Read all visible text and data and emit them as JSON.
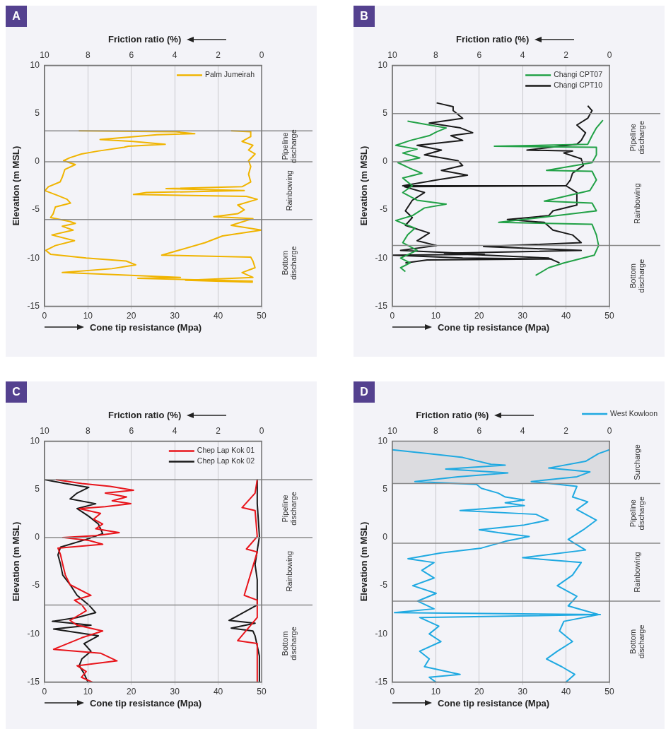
{
  "chart_data": [
    {
      "type": "line",
      "title": "A",
      "xlabel": "Cone tip resistance (Mpa)",
      "x2label": "Friction ratio (%)",
      "ylabel": "Elevation (m MSL)",
      "xlim": [
        0,
        50
      ],
      "xticks": [
        0,
        10,
        20,
        30,
        40,
        50
      ],
      "x2lim": [
        10,
        0
      ],
      "x2ticks": [
        10,
        8,
        6,
        4,
        2,
        0
      ],
      "ylim": [
        -15,
        10
      ],
      "yticks": [
        -15,
        -10,
        -5,
        0,
        5,
        10
      ],
      "grid": "x",
      "legend": "top right",
      "ref_lines": [
        {
          "axis": "y",
          "value": 3.2
        },
        {
          "axis": "y",
          "value": 0
        },
        {
          "axis": "y",
          "value": -6
        }
      ],
      "annotations": [
        "Pipeline discharge",
        "Rainbowing",
        "Bottom discharge"
      ],
      "series": [
        {
          "name": "Palm Jumeirah",
          "color": "#f0b400",
          "x": [
            7.9,
            30.2,
            34.6,
            25.9,
            12.8,
            20.4,
            27.8,
            19.3,
            18.3,
            12.3,
            8.5,
            5.8,
            4.4,
            7.1,
            4.7,
            4.1,
            3.6,
            0.9,
            0.1,
            3.0,
            5.2,
            6.0,
            2.5,
            2.0,
            1.4,
            5.8,
            7.1,
            4.1,
            6.6,
            1.7,
            6.9,
            2.5,
            0.3,
            1.4,
            9.6,
            18.8,
            21.0,
            15.5,
            4.1,
            15.0,
            31.3,
            21.5,
            48.0
          ],
          "values": [
            3.2,
            3.1,
            2.9,
            2.8,
            2.3,
            2.1,
            1.8,
            1.6,
            1.5,
            1.1,
            0.8,
            0.4,
            0.1,
            -0.3,
            -0.8,
            -1.6,
            -2.1,
            -2.6,
            -3.0,
            -3.5,
            -3.9,
            -4.3,
            -4.7,
            -5.4,
            -5.8,
            -6.2,
            -6.4,
            -6.7,
            -7.1,
            -7.6,
            -8.2,
            -8.7,
            -9.2,
            -9.6,
            -10.0,
            -10.3,
            -10.7,
            -11.1,
            -11.5,
            -11.7,
            -12.0,
            -12.1,
            -12.4
          ]
        },
        {
          "color": "#f0b400",
          "axis": "x2",
          "x": [
            1.4,
            0.5,
            0.5,
            0.9,
            0.4,
            0.6,
            0.3,
            0.6,
            0.5,
            0.6,
            0.5,
            0.9,
            4.4,
            0.8,
            5.3,
            5.9,
            0.7,
            0.2,
            1.1,
            0.8,
            1.1,
            2.2,
            0.4,
            1.4,
            0.0,
            1.2,
            1.8,
            2.6,
            4.6,
            0.5,
            0.4,
            0.3,
            0.9,
            0.4,
            3.5,
            0.4
          ],
          "values": [
            3.2,
            3.1,
            2.6,
            2.1,
            1.7,
            1.2,
            0.8,
            0.1,
            -0.5,
            -1.3,
            -2.1,
            -2.6,
            -2.8,
            -3.0,
            -3.2,
            -3.4,
            -3.6,
            -3.9,
            -4.5,
            -5.0,
            -5.4,
            -5.7,
            -5.9,
            -6.6,
            -7.1,
            -7.5,
            -7.7,
            -8.4,
            -9.7,
            -9.9,
            -10.3,
            -11.0,
            -11.5,
            -12.0,
            -12.3,
            -12.5
          ]
        }
      ]
    },
    {
      "type": "line",
      "title": "B",
      "xlabel": "Cone tip resistance (Mpa)",
      "x2label": "Friction ratio (%)",
      "ylabel": "Elevation (m MSL)",
      "xlim": [
        0,
        50
      ],
      "xticks": [
        0,
        10,
        20,
        30,
        40,
        50
      ],
      "x2lim": [
        10,
        0
      ],
      "x2ticks": [
        10,
        8,
        6,
        4,
        2,
        0
      ],
      "ylim": [
        -15,
        10
      ],
      "yticks": [
        -15,
        -10,
        -5,
        0,
        5,
        10
      ],
      "grid": "x",
      "legend": "top right",
      "ref_lines": [
        {
          "axis": "y",
          "value": 5
        },
        {
          "axis": "y",
          "value": 0
        },
        {
          "axis": "y",
          "value": -8.7
        }
      ],
      "annotations": [
        "Pipeline discharge",
        "Rainbowing",
        "Bottom discharge"
      ],
      "series": [
        {
          "name": "Changi CPT07",
          "color": "#21a146",
          "x": [
            3.5,
            7.4,
            12.4,
            10.2,
            8.5,
            4.1,
            0.8,
            5.7,
            2.4,
            6.3,
            1.3,
            4.1,
            6.8,
            2.4,
            4.6,
            2.4,
            5.7,
            12.4,
            7.4,
            4.6,
            0.8,
            5.2,
            3.5,
            2.4,
            5.7,
            1.9,
            4.1,
            1.9,
            3.0
          ],
          "values": [
            4.2,
            3.9,
            3.5,
            3.1,
            2.7,
            2.2,
            1.7,
            1.3,
            0.9,
            0.4,
            -0.1,
            -0.7,
            -1.2,
            -1.7,
            -2.5,
            -3.2,
            -4.0,
            -4.4,
            -4.8,
            -5.6,
            -6.1,
            -6.9,
            -7.6,
            -8.4,
            -9.2,
            -10.0,
            -10.5,
            -11.0,
            -11.4
          ]
        },
        {
          "name": "Changi CPT10",
          "color": "#1a1a1a",
          "x": [
            10.2,
            14.0,
            14.0,
            16.2,
            8.5,
            15.7,
            18.5,
            13.5,
            16.2,
            5.7,
            11.3,
            7.4,
            15.1,
            16.2,
            11.3,
            17.3,
            10.2,
            2.4,
            40.0,
            2.8,
            7.4,
            4.6,
            3.0,
            4.6,
            3.0,
            8.5,
            5.7,
            10.2,
            1.9,
            21.2,
            0.2,
            16.2,
            36.7,
            8.0,
            3.0
          ],
          "values": [
            6.1,
            5.7,
            5.3,
            4.5,
            4.0,
            3.5,
            3.0,
            2.7,
            2.2,
            1.7,
            1.2,
            0.7,
            0.1,
            -0.4,
            -0.9,
            -1.4,
            -1.9,
            -2.5,
            -2.5,
            -2.6,
            -3.2,
            -4.0,
            -5.1,
            -5.8,
            -6.6,
            -7.4,
            -8.2,
            -8.7,
            -9.2,
            -9.6,
            -9.7,
            -10.0,
            -10.1,
            -10.2,
            -10.5
          ]
        },
        {
          "color": "#21a146",
          "axis": "x2",
          "x": [
            0.3,
            0.6,
            0.8,
            1.0,
            5.3,
            0.6,
            0.6,
            0.8,
            2.9,
            0.8,
            0.6,
            0.9,
            3.0,
            0.8,
            0.6,
            5.1,
            0.8,
            0.6,
            0.5,
            0.7,
            2.1,
            2.8,
            3.4
          ],
          "values": [
            4.3,
            3.5,
            2.7,
            1.8,
            1.6,
            1.5,
            0.7,
            -0.1,
            -0.9,
            -1.0,
            -1.9,
            -3.0,
            -4.1,
            -4.3,
            -5.1,
            -6.3,
            -6.5,
            -7.6,
            -8.7,
            -9.7,
            -10.5,
            -11.0,
            -11.8
          ]
        },
        {
          "color": "#1a1a1a",
          "axis": "x2",
          "x": [
            1.0,
            0.8,
            1.0,
            1.5,
            1.1,
            1.3,
            1.5,
            3.8,
            1.7,
            2.1,
            1.3,
            1.2,
            1.7,
            1.8,
            2.0,
            1.5,
            1.5,
            2.6,
            2.8,
            4.7,
            3.0,
            2.6,
            1.7,
            1.3,
            5.8,
            1.3,
            7.6,
            2.8,
            2.6,
            2.3
          ],
          "values": [
            5.8,
            5.3,
            4.5,
            3.8,
            3.0,
            2.2,
            1.8,
            1.2,
            1.1,
            0.9,
            0.3,
            -0.4,
            -1.2,
            -1.9,
            -2.5,
            -3.2,
            -4.5,
            -5.1,
            -5.6,
            -6.0,
            -6.3,
            -7.1,
            -7.6,
            -8.4,
            -8.8,
            -9.2,
            -9.5,
            -10.0,
            -10.2,
            -10.5
          ]
        }
      ]
    },
    {
      "type": "line",
      "title": "C",
      "xlabel": "Cone tip resistance (Mpa)",
      "x2label": "Friction ratio (%)",
      "ylabel": "Elevation (m MSL)",
      "xlim": [
        0,
        50
      ],
      "xticks": [
        0,
        10,
        20,
        30,
        40,
        50
      ],
      "x2lim": [
        10,
        0
      ],
      "x2ticks": [
        10,
        8,
        6,
        4,
        2,
        0
      ],
      "ylim": [
        -15,
        10
      ],
      "yticks": [
        -15,
        -10,
        -5,
        0,
        5,
        10
      ],
      "grid": "x",
      "legend": "top right",
      "ref_lines": [
        {
          "axis": "y",
          "value": 6
        },
        {
          "axis": "y",
          "value": 0
        },
        {
          "axis": "y",
          "value": -7
        }
      ],
      "annotations": [
        "Pipeline discharge",
        "Rainbowing",
        "Bottom discharge"
      ],
      "series": [
        {
          "name": "Chep Lap Kok 01",
          "color": "#e8141b",
          "x": [
            2.6,
            8.6,
            15.1,
            20.5,
            14.0,
            18.9,
            15.6,
            19.9,
            14.0,
            8.0,
            12.9,
            11.3,
            13.4,
            11.8,
            17.2,
            11.8,
            4.2,
            10.2,
            13.4,
            3.1,
            3.7,
            4.2,
            4.8,
            5.9,
            10.7,
            6.9,
            8.6,
            9.6,
            5.9,
            7.5,
            13.4,
            8.6,
            2.1,
            12.9,
            16.7,
            7.5,
            9.6,
            8.5,
            11.0
          ],
          "values": [
            6.0,
            5.6,
            5.3,
            4.9,
            4.6,
            4.2,
            3.8,
            3.5,
            3.2,
            3.0,
            2.5,
            1.9,
            1.4,
            0.9,
            0.5,
            0.2,
            0.0,
            -0.3,
            -0.7,
            -1.1,
            -1.8,
            -2.8,
            -3.9,
            -4.9,
            -6.0,
            -6.5,
            -7.0,
            -7.6,
            -8.6,
            -9.1,
            -9.7,
            -10.4,
            -11.6,
            -12.0,
            -12.8,
            -13.3,
            -13.9,
            -14.5,
            -15.0
          ]
        },
        {
          "name": "Chep Lap Kok 02",
          "color": "#1a1a1a",
          "x": [
            0.0,
            4.8,
            10.2,
            7.5,
            5.9,
            11.8,
            7.5,
            10.2,
            12.4,
            13.4,
            9.6,
            3.7,
            3.1,
            3.7,
            4.2,
            5.9,
            7.5,
            10.2,
            11.8,
            7.5,
            1.8,
            10.7,
            2.1,
            12.4,
            9.1,
            10.7,
            8.6,
            8.0,
            9.1,
            10.0
          ],
          "values": [
            6.0,
            5.6,
            5.2,
            4.6,
            4.0,
            3.5,
            3.0,
            2.2,
            1.4,
            0.4,
            -0.2,
            -1.0,
            -1.8,
            -2.8,
            -3.9,
            -4.9,
            -6.0,
            -7.0,
            -7.8,
            -8.3,
            -8.7,
            -9.1,
            -9.5,
            -10.2,
            -11.0,
            -11.8,
            -12.6,
            -13.3,
            -14.1,
            -15.0
          ]
        },
        {
          "color": "#e8141b",
          "axis": "x2",
          "x": [
            0.2,
            0.3,
            0.9,
            0.3,
            0.2,
            0.7,
            0.2,
            0.8,
            0.2,
            0.2,
            1.1,
            0.2,
            0.2
          ],
          "values": [
            6.0,
            4.6,
            3.1,
            2.8,
            0.1,
            -1.2,
            -1.5,
            -6.0,
            -6.5,
            -8.3,
            -10.7,
            -11.0,
            -15.0
          ]
        },
        {
          "color": "#1a1a1a",
          "axis": "x2",
          "x": [
            0.2,
            0.2,
            0.1,
            0.3,
            0.2,
            0.2,
            1.5,
            0.3,
            1.4,
            0.4,
            0.3,
            0.1,
            0.1
          ],
          "values": [
            6.0,
            3.5,
            0.1,
            -2.8,
            -4.4,
            -7.0,
            -8.6,
            -8.9,
            -9.4,
            -9.7,
            -10.2,
            -12.3,
            -15.0
          ]
        }
      ]
    },
    {
      "type": "line",
      "title": "D",
      "xlabel": "Cone tip resistance (Mpa)",
      "x2label": "Friction ratio (%)",
      "ylabel": "Elevation (m MSL)",
      "xlim": [
        0,
        50
      ],
      "xticks": [
        0,
        10,
        20,
        30,
        40,
        50
      ],
      "x2lim": [
        10,
        0
      ],
      "x2ticks": [
        10,
        8,
        6,
        4,
        2,
        0
      ],
      "ylim": [
        -15,
        10
      ],
      "yticks": [
        -15,
        -10,
        -5,
        0,
        5,
        10
      ],
      "grid": "x",
      "legend": "top",
      "ref_lines": [
        {
          "axis": "y",
          "value": 5.6
        },
        {
          "axis": "y",
          "value": -0.6
        },
        {
          "axis": "y",
          "value": -6.6
        }
      ],
      "bands": [
        {
          "axis": "y",
          "from": 5.6,
          "to": 10,
          "color": "#dcdce0"
        }
      ],
      "annotations": [
        "Surcharge",
        "Pipeline discharge",
        "Rainbowing",
        "Bottom discharge"
      ],
      "series": [
        {
          "name": "West Kowloon",
          "color": "#1fa9e1",
          "x": [
            0.0,
            8.5,
            16.2,
            22.7,
            26.0,
            12.3,
            26.6,
            15.1,
            5.2,
            19.4,
            20.5,
            24.4,
            26.0,
            30.4,
            26.0,
            30.4,
            15.6,
            33.1,
            35.9,
            30.4,
            20.0,
            24.4,
            31.5,
            26.0,
            20.5,
            11.2,
            3.6,
            9.6,
            6.8,
            9.6,
            4.7,
            10.1,
            5.8,
            9.6,
            0.5,
            47.9,
            6.3,
            10.7,
            8.5,
            11.2,
            6.3,
            8.5,
            7.4,
            15.6,
            8.5,
            10.0
          ],
          "values": [
            9.1,
            8.7,
            8.3,
            7.6,
            7.5,
            7.1,
            6.7,
            6.3,
            5.8,
            5.5,
            5.1,
            4.6,
            4.2,
            3.9,
            3.6,
            3.3,
            2.8,
            2.4,
            1.8,
            1.3,
            0.8,
            0.5,
            0.1,
            -0.4,
            -1.1,
            -1.6,
            -2.2,
            -2.6,
            -3.4,
            -4.2,
            -5.0,
            -5.8,
            -6.6,
            -7.4,
            -7.8,
            -8.0,
            -8.3,
            -9.2,
            -10.0,
            -10.8,
            -11.8,
            -12.6,
            -13.4,
            -14.2,
            -14.5,
            -15.0
          ]
        },
        {
          "color": "#1fa9e1",
          "axis": "x2",
          "x": [
            0.0,
            0.5,
            1.1,
            2.8,
            0.9,
            1.5,
            3.6,
            1.5,
            1.7,
            1.0,
            1.5,
            0.6,
            1.2,
            1.9,
            1.1,
            4.0,
            1.3,
            1.7,
            2.4,
            1.5,
            1.9,
            0.5,
            2.1,
            2.3,
            1.7,
            2.4,
            2.9,
            2.2,
            1.6,
            2.0
          ],
          "values": [
            9.1,
            8.7,
            7.9,
            7.2,
            6.8,
            6.3,
            5.8,
            5.3,
            4.2,
            3.7,
            2.9,
            1.8,
            0.8,
            -0.2,
            -1.3,
            -2.1,
            -2.6,
            -3.9,
            -5.0,
            -6.1,
            -7.1,
            -8.0,
            -8.7,
            -9.7,
            -10.8,
            -11.8,
            -12.6,
            -13.4,
            -14.2,
            -15.0
          ]
        }
      ]
    }
  ]
}
